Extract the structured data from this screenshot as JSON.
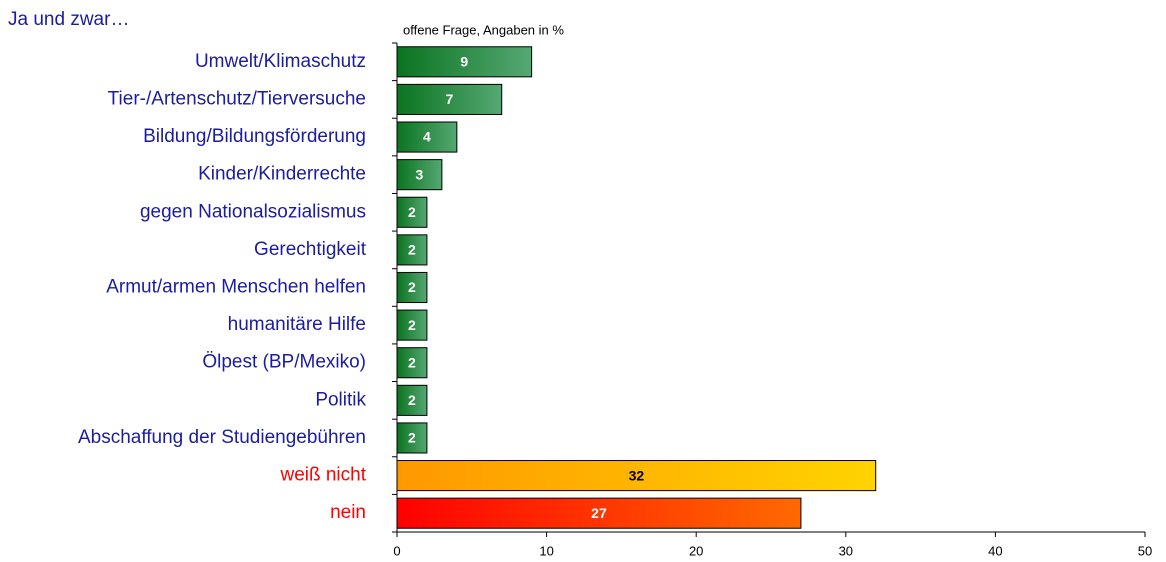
{
  "chart_data": {
    "type": "bar",
    "orientation": "horizontal",
    "title": "Ja und zwar…",
    "subtitle": "offene Frage, Angaben in %",
    "categories": [
      "Umwelt/Klimaschutz",
      "Tier-/Artenschutz/Tierversuche",
      "Bildung/Bildungsförderung",
      "Kinder/Kinderrechte",
      "gegen Nationalsozialismus",
      "Gerechtigkeit",
      "Armut/armen Menschen helfen",
      "humanitäre Hilfe",
      "Ölpest (BP/Mexiko)",
      "Politik",
      "Abschaffung der Studiengebühren",
      "weiß nicht",
      "nein"
    ],
    "values": [
      9,
      7,
      4,
      3,
      2,
      2,
      2,
      2,
      2,
      2,
      2,
      32,
      27
    ],
    "bar_gradients": [
      [
        "#0b7420",
        "#55a873"
      ],
      [
        "#0b7420",
        "#55a873"
      ],
      [
        "#0b7420",
        "#55a873"
      ],
      [
        "#0b7420",
        "#55a873"
      ],
      [
        "#0b7420",
        "#55a873"
      ],
      [
        "#0b7420",
        "#55a873"
      ],
      [
        "#0b7420",
        "#55a873"
      ],
      [
        "#0b7420",
        "#55a873"
      ],
      [
        "#0b7420",
        "#55a873"
      ],
      [
        "#0b7420",
        "#55a873"
      ],
      [
        "#0b7420",
        "#55a873"
      ],
      [
        "#ff9800",
        "#ffd400"
      ],
      [
        "#ff0000",
        "#ff6a00"
      ]
    ],
    "label_colors": [
      "#1c1ca0",
      "#1c1ca0",
      "#1c1ca0",
      "#1c1ca0",
      "#1c1ca0",
      "#1c1ca0",
      "#1c1ca0",
      "#1c1ca0",
      "#1c1ca0",
      "#1c1ca0",
      "#1c1ca0",
      "#ff0000",
      "#ff0000"
    ],
    "value_label_colors": [
      "#ffffff",
      "#ffffff",
      "#ffffff",
      "#ffffff",
      "#ffffff",
      "#ffffff",
      "#ffffff",
      "#ffffff",
      "#ffffff",
      "#ffffff",
      "#ffffff",
      "#000000",
      "#ffffff"
    ],
    "xlim": [
      0,
      50
    ],
    "xticks": [
      0,
      10,
      20,
      30,
      40,
      50
    ],
    "grid": false
  }
}
